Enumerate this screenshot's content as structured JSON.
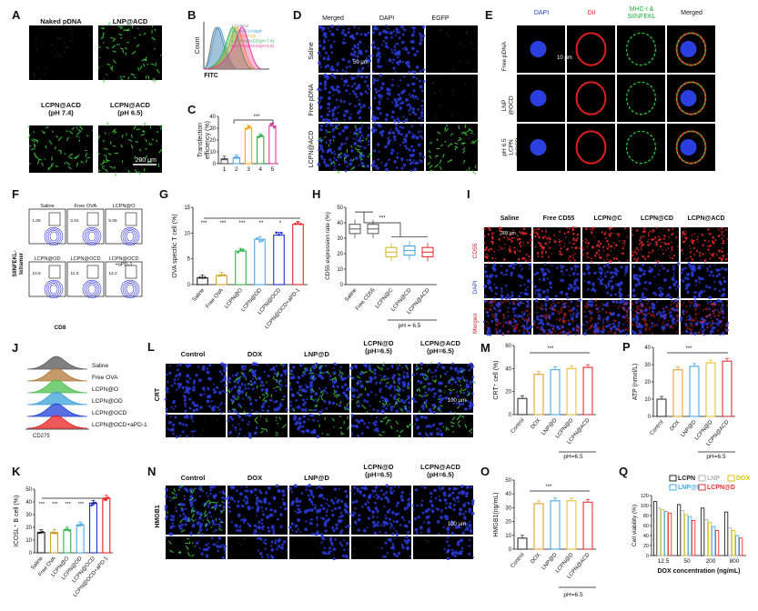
{
  "panels": {
    "A": {
      "letter": "A",
      "labels": [
        "Naked pDNA",
        "LNP@ACD",
        "LCPN@ACD\n(pH 7.4)",
        "LCPN@ACD\n(pH 6.5)"
      ],
      "scale": "200 μm"
    },
    "B": {
      "letter": "B",
      "xlabel": "FITC",
      "ylabel": "Count",
      "legend": [
        {
          "label": "1.Control",
          "color": "#7f7f7f"
        },
        {
          "label": "2.Naked pAdggk",
          "color": "#4aa8e8"
        },
        {
          "label": "3.LNP@ACD",
          "color": "#f5a623"
        },
        {
          "label": "4.LCPN@ACD(pH 7.4)",
          "color": "#2fb34a"
        },
        {
          "label": "5.LCPN@ACD(pH 6.5)",
          "color": "#e8399a"
        }
      ]
    },
    "C": {
      "letter": "C",
      "ylabel": "Transfection\nefficiency (%)",
      "sig": "***",
      "chart_data": {
        "type": "bar",
        "categories": [
          "1",
          "2",
          "3",
          "4",
          "5"
        ],
        "values": [
          4,
          5,
          30,
          23,
          32
        ],
        "ylim": [
          0,
          40
        ],
        "yticks": [
          0,
          10,
          20,
          30,
          40
        ],
        "colors": [
          "#555555",
          "#4aa8e8",
          "#f5a623",
          "#2fb34a",
          "#e8399a"
        ]
      }
    },
    "D": {
      "letter": "D",
      "cols": [
        "Merged",
        "DAPI",
        "EGFP"
      ],
      "rows": [
        "Saline",
        "Free pDNA",
        "LCPN@ACD"
      ],
      "scale": "50 μm"
    },
    "E": {
      "letter": "E",
      "cols": [
        "DAPI",
        "DiI",
        "MHC-I &\nSIINFEKL",
        "Merged"
      ],
      "col_colors": [
        "#1f3fd6",
        "#d62020",
        "#1fae3a",
        "#111111"
      ],
      "rows": [
        "Free pDNA",
        "LNP\n@OCD",
        "pH 6.5\nLCPN\n@OCD"
      ],
      "scale": "10 μm"
    },
    "F": {
      "letter": "F",
      "labels": [
        "Saline",
        "Free OVA",
        "LCPN@O",
        "LCPN@OD",
        "LCPN@OCD",
        "LCPN@OCD\n+aPD-1"
      ],
      "values": [
        "1.06",
        "2.01",
        "5.05",
        "10.6",
        "11.0",
        "12.2"
      ],
      "xlabel": "CD8",
      "ylabel": "SIINFEKL-\ntetramer"
    },
    "G": {
      "letter": "G",
      "ylabel": "OVA specific T cell (%)",
      "chart_data": {
        "type": "bar",
        "categories": [
          "Saline",
          "Free OVA",
          "LCPN@O",
          "LCPN@OD",
          "LCPN@OCD",
          "LCPN@OCD+aPD-1"
        ],
        "values": [
          1.3,
          1.8,
          6.5,
          8.8,
          9.6,
          11.7
        ],
        "ylim": [
          0,
          15
        ],
        "yticks": [
          0,
          5,
          10,
          15
        ],
        "colors": [
          "#222222",
          "#c9a227",
          "#2fb34a",
          "#4aa8e8",
          "#1f2fd6",
          "#e82020"
        ],
        "sig": [
          "***",
          "***",
          "***",
          "**",
          "*"
        ]
      }
    },
    "H": {
      "letter": "H",
      "ylabel": "CD55 expression rate (%)",
      "sig": "***",
      "ph": "pH = 6.5",
      "chart_data": {
        "type": "box",
        "categories": [
          "Saline",
          "Free CD55",
          "LCPN@C",
          "LCPN@CD",
          "LCPN@ACD"
        ],
        "values": [
          36,
          36,
          21,
          22,
          21
        ],
        "ylim": [
          0,
          50
        ],
        "yticks": [
          0,
          10,
          20,
          30,
          40,
          50
        ],
        "colors": [
          "#555555",
          "#555555",
          "#d6b21a",
          "#3aa0d8",
          "#e82020"
        ]
      }
    },
    "I": {
      "letter": "I",
      "cols": [
        "Saline",
        "Free CD55",
        "LCPN@C",
        "LCPN@CD",
        "LCPN@ACD"
      ],
      "rows": [
        "CD55",
        "DAPI",
        "Merged"
      ],
      "row_colors": [
        "#d62020",
        "#1f3fd6",
        "#d62020"
      ],
      "scale": "300 μm"
    },
    "J": {
      "letter": "J",
      "labels": [
        "Saline",
        "Free OVA",
        "LCPN@O",
        "LCPN@OD",
        "LCPN@OCD",
        "LCPN@OCD+aPD-1"
      ],
      "colors": [
        "#555555",
        "#b0783a",
        "#4cbf4c",
        "#3aa0d8",
        "#1f3fd6",
        "#e82020"
      ],
      "xlabel": "CD275"
    },
    "K": {
      "letter": "K",
      "ylabel": "ICOSL⁺ B cell (%)",
      "chart_data": {
        "type": "bar",
        "categories": [
          "Saline",
          "Free OVA",
          "LCPN@O",
          "LCPN@OD",
          "LCPN@OCD",
          "LCPN@OCD+aPD-1"
        ],
        "values": [
          16,
          16,
          18,
          22,
          39,
          43
        ],
        "ylim": [
          0,
          50
        ],
        "yticks": [
          0,
          10,
          20,
          30,
          40,
          50
        ],
        "colors": [
          "#222222",
          "#c9a227",
          "#2fb34a",
          "#4aa8e8",
          "#1f2fd6",
          "#e82020"
        ],
        "sig": [
          "***",
          "***",
          "***",
          "***",
          "***"
        ]
      }
    },
    "L": {
      "letter": "L",
      "cols": [
        "Control",
        "DOX",
        "LNP@D",
        "LCPN@D\n(pH=6.5)",
        "LCPN@ACD\n(pH=6.5)"
      ],
      "row": "CRT",
      "scale": "100 μm"
    },
    "M": {
      "letter": "M",
      "ylabel": "CRT⁺ cell (%)",
      "sig": "***",
      "ph": "pH=6.5",
      "chart_data": {
        "type": "bar",
        "categories": [
          "Control",
          "DOX",
          "LNP@D",
          "LCPN@D",
          "LCPN@ACD"
        ],
        "values": [
          14,
          35,
          39,
          40,
          41
        ],
        "ylim": [
          0,
          60
        ],
        "yticks": [
          0,
          20,
          40,
          60
        ],
        "colors": [
          "#333333",
          "#e8a030",
          "#4aa8e8",
          "#e8c030",
          "#e83030"
        ]
      }
    },
    "N": {
      "letter": "N",
      "cols": [
        "Control",
        "DOX",
        "LNP@D",
        "LCPN@D\n(pH=6.5)",
        "LCPN@ACD\n(pH=6.5)"
      ],
      "row": "HMGB1",
      "scale": "100 μm"
    },
    "O": {
      "letter": "O",
      "ylabel": "HMGB1(ng/mL)",
      "sig": "***",
      "ph": "pH=6.5",
      "chart_data": {
        "type": "bar",
        "categories": [
          "Control",
          "DOX",
          "LNP@D",
          "LCPN@D",
          "LCPN@ACD"
        ],
        "values": [
          8,
          33,
          35,
          35,
          34
        ],
        "ylim": [
          0,
          50
        ],
        "yticks": [
          0,
          10,
          20,
          30,
          40,
          50
        ],
        "colors": [
          "#333333",
          "#e8a030",
          "#4aa8e8",
          "#e8c030",
          "#e83030"
        ]
      }
    },
    "P": {
      "letter": "P",
      "ylabel": "ATP (nmol/L)",
      "sig": "***",
      "ph": "pH=6.5",
      "chart_data": {
        "type": "bar",
        "categories": [
          "Control",
          "DOX",
          "LNP@D",
          "LCPN@D",
          "LCPN@ACD"
        ],
        "values": [
          10,
          27,
          29,
          31,
          32
        ],
        "ylim": [
          0,
          40
        ],
        "yticks": [
          0,
          10,
          20,
          30,
          40
        ],
        "colors": [
          "#333333",
          "#e8a030",
          "#4aa8e8",
          "#e8c030",
          "#e83030"
        ]
      }
    },
    "Q": {
      "letter": "Q",
      "ylabel": "Cell viability (%)",
      "xlabel": "DOX concentration (ng/mL)",
      "chart_data": {
        "type": "bar",
        "categories": [
          "12.5",
          "50",
          "200",
          "800"
        ],
        "ylim": [
          0,
          120
        ],
        "yticks": [
          0,
          20,
          40,
          60,
          80,
          100,
          120
        ],
        "series": [
          {
            "name": "LCPN",
            "color": "#222222",
            "values": [
              108,
              102,
              95,
              87
            ]
          },
          {
            "name": "LNP",
            "color": "#b0b0b0",
            "values": [
              95,
              90,
              72,
              55
            ]
          },
          {
            "name": "DOX",
            "color": "#d6c21a",
            "values": [
              92,
              82,
              66,
              50
            ]
          },
          {
            "name": "LNP@D",
            "color": "#4aa8e8",
            "values": [
              88,
              78,
              58,
              40
            ]
          },
          {
            "name": "LCPN@D",
            "color": "#e83030",
            "values": [
              85,
              70,
              50,
              35
            ]
          }
        ]
      }
    }
  }
}
